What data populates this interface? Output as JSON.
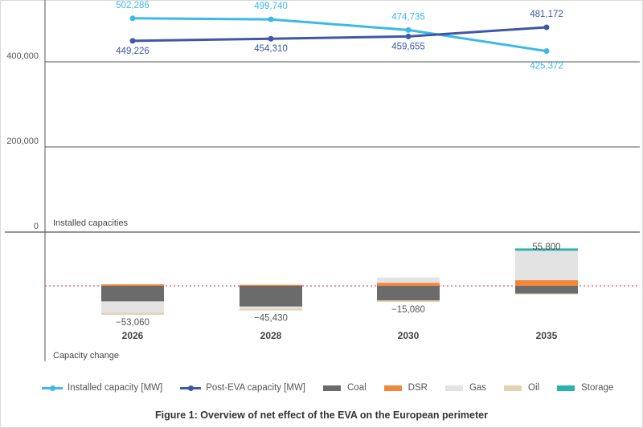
{
  "colors": {
    "installed": "#3cb9e6",
    "post_eva": "#3e58a6",
    "coal": "#6b6b6b",
    "dsr": "#f0873a",
    "gas": "#e3e3e3",
    "oil": "#e4d2b4",
    "storage": "#2ab3a9",
    "zero_line": "#e0507a"
  },
  "chart_data": [
    {
      "type": "line",
      "panel_label": "Installed capacities",
      "x": [
        "2026",
        "2028",
        "2030",
        "2035"
      ],
      "series": [
        {
          "name": "Installed capacity [MW]",
          "values": [
            502286,
            499740,
            474735,
            425372
          ],
          "labels": [
            "502,286",
            "499,740",
            "474,735",
            "425,372"
          ]
        },
        {
          "name": "Post-EVA capacity [MW]",
          "values": [
            449226,
            454310,
            459655,
            481172
          ],
          "labels": [
            "449,226",
            "454,310",
            "459,655",
            "481,172"
          ]
        }
      ],
      "y_ticks": [
        0,
        200000,
        400000
      ],
      "y_tick_labels": [
        "0",
        "200,000",
        "400,000"
      ],
      "ylim": [
        0,
        520000
      ],
      "grid": true
    },
    {
      "type": "bar",
      "stacked": true,
      "panel_label": "Capacity change",
      "categories": [
        "2026",
        "2028",
        "2030",
        "2035"
      ],
      "totals": [
        -53060,
        -45430,
        -15080,
        55800
      ],
      "total_labels": [
        "−53,060",
        "−45,430",
        "−15,080",
        "55,800"
      ],
      "ylim": [
        -65000,
        75000
      ],
      "series": [
        {
          "name": "Coal",
          "key": "coal",
          "values": [
            -30000,
            -40000,
            -28000,
            -15000
          ]
        },
        {
          "name": "DSR",
          "key": "dsr",
          "values": [
            3000,
            2000,
            6000,
            11000
          ]
        },
        {
          "name": "Gas",
          "key": "gas",
          "values": [
            -22000,
            -4000,
            10000,
            57000
          ]
        },
        {
          "name": "Oil",
          "key": "oil",
          "values": [
            -4060,
            -3430,
            -3080,
            -1500
          ]
        },
        {
          "name": "Storage",
          "key": "storage",
          "values": [
            0,
            0,
            0,
            4300
          ]
        }
      ]
    }
  ],
  "legend": {
    "items": [
      {
        "label": "Installed capacity [MW]",
        "kind": "line",
        "key": "installed"
      },
      {
        "label": "Post-EVA capacity [MW]",
        "kind": "line",
        "key": "post_eva"
      },
      {
        "label": "Coal",
        "kind": "swatch",
        "key": "coal"
      },
      {
        "label": "DSR",
        "kind": "swatch",
        "key": "dsr"
      },
      {
        "label": "Gas",
        "kind": "swatch",
        "key": "gas"
      },
      {
        "label": "Oil",
        "kind": "swatch",
        "key": "oil"
      },
      {
        "label": "Storage",
        "kind": "swatch",
        "key": "storage"
      }
    ]
  },
  "caption": "Figure 1: Overview of net effect of the EVA on the European perimeter"
}
